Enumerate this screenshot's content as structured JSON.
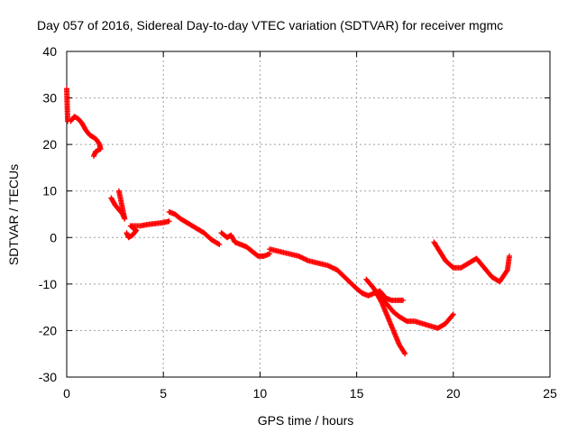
{
  "chart_data": {
    "type": "scatter",
    "title": "Day 057 of 2016, Sidereal Day-to-day VTEC variation (SDTVAR) for receiver mgmc",
    "xlabel": "GPS time / hours",
    "ylabel": "SDTVAR / TECUs",
    "xlim": [
      0,
      25
    ],
    "ylim": [
      -30,
      40
    ],
    "xticks": [
      0,
      5,
      10,
      15,
      20,
      25
    ],
    "yticks": [
      -30,
      -20,
      -10,
      0,
      10,
      20,
      30,
      40
    ],
    "grid": true,
    "marker": "+",
    "marker_color": "#ff0000",
    "series": [
      {
        "name": "seg1",
        "x": [
          0.0,
          0.05
        ],
        "y": [
          32,
          25
        ]
      },
      {
        "name": "seg2",
        "x": [
          0.2,
          0.4,
          0.6,
          0.8,
          1.0,
          1.2,
          1.4,
          1.55,
          1.7,
          1.75,
          1.5,
          1.4
        ],
        "y": [
          25,
          26,
          25.5,
          24.5,
          23,
          22,
          21.5,
          21,
          20,
          19,
          18.5,
          17.5
        ]
      },
      {
        "name": "seg3",
        "x": [
          2.3,
          2.5,
          2.7,
          2.9,
          3.0,
          2.7
        ],
        "y": [
          8.5,
          7,
          6,
          5,
          4,
          10
        ]
      },
      {
        "name": "seg4",
        "x": [
          3.1,
          3.2,
          3.4,
          3.6,
          3.3,
          3.8,
          4.2,
          4.6,
          5.0,
          5.3
        ],
        "y": [
          1,
          0,
          0.5,
          1.5,
          2.5,
          2.5,
          2.8,
          3.0,
          3.2,
          3.5
        ]
      },
      {
        "name": "seg5",
        "x": [
          5.3,
          5.6,
          5.9,
          6.3,
          6.7,
          7.1,
          7.5,
          7.9
        ],
        "y": [
          5.5,
          5,
          4,
          3,
          2,
          1,
          -0.5,
          -1.5
        ]
      },
      {
        "name": "seg6",
        "x": [
          8.0,
          8.3,
          8.5,
          8.7,
          9.0,
          9.3,
          9.6,
          9.9,
          10.2,
          10.5
        ],
        "y": [
          1,
          0,
          0.5,
          -1,
          -1.5,
          -2,
          -3,
          -4,
          -4,
          -3.5
        ]
      },
      {
        "name": "seg7",
        "x": [
          10.5,
          11.0,
          11.5,
          12.0,
          12.5,
          13.0,
          13.5,
          14.0,
          14.5,
          15.0,
          15.3
        ],
        "y": [
          -2.5,
          -3,
          -3.5,
          -4,
          -5,
          -5.5,
          -6,
          -7,
          -9,
          -11,
          -12
        ]
      },
      {
        "name": "seg8",
        "x": [
          15.3,
          15.6,
          15.9,
          16.2,
          16.5,
          16.8,
          17.0,
          17.4
        ],
        "y": [
          -12,
          -12.5,
          -12,
          -11.5,
          -13,
          -13.5,
          -13.5,
          -13.5
        ]
      },
      {
        "name": "seg9",
        "x": [
          15.5,
          15.9,
          16.3,
          16.6,
          16.9,
          17.2,
          17.5
        ],
        "y": [
          -9,
          -11,
          -14,
          -17,
          -20,
          -23,
          -25
        ]
      },
      {
        "name": "seg10",
        "x": [
          16.2,
          16.5,
          16.9,
          17.2,
          17.6,
          18.0,
          18.4,
          18.8,
          19.2,
          19.6,
          20.0
        ],
        "y": [
          -12,
          -14,
          -16,
          -17,
          -18,
          -18,
          -18.5,
          -19,
          -19.5,
          -18.5,
          -16.5
        ]
      },
      {
        "name": "seg11",
        "x": [
          19.0,
          19.3,
          19.6,
          20.0,
          20.4,
          20.8,
          21.2,
          21.6,
          22.0,
          22.4,
          22.8,
          22.9
        ],
        "y": [
          -1,
          -3,
          -5,
          -6.5,
          -6.5,
          -5.5,
          -4.5,
          -6.5,
          -8.5,
          -9.5,
          -7,
          -4
        ]
      }
    ]
  }
}
